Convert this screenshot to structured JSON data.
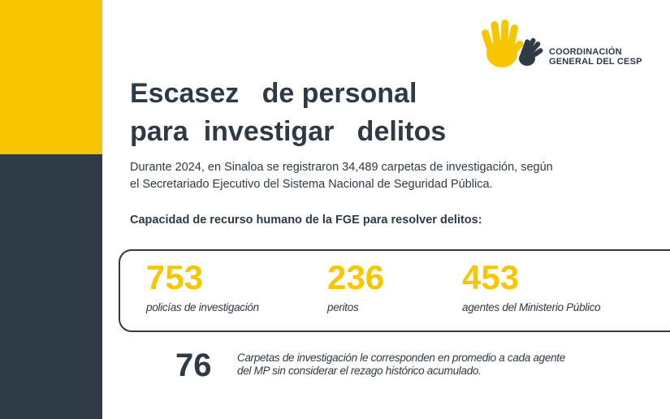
{
  "logo": {
    "line1": "COORDINACIÓN",
    "line2": "GENERAL DEL CESP",
    "icon": "raised-hands-icon",
    "colors": {
      "yellow": "#f7c600",
      "dark": "#2e3a46"
    }
  },
  "title": {
    "line1": "Escasez   de personal",
    "line2": "para  investigar   delitos"
  },
  "intro": {
    "line1": "Durante 2024, en Sinaloa se registraron 34,489 carpetas de investigación,  según",
    "line2": "el Secretariado Ejecutivo del Sistema Nacional de Seguridad Pública."
  },
  "subhead": "Capacidad de recurso humano de la FGE para resolver delitos:",
  "stats": [
    {
      "value": "753",
      "label": "policías de investigación"
    },
    {
      "value": "236",
      "label": "peritos"
    },
    {
      "value": "453",
      "label": "agentes del Ministerio Público"
    }
  ],
  "average": {
    "value": "76",
    "line1": "Carpetas de investigación le corresponden en promedio a cada agente",
    "line2": "del MP sin considerar el rezago histórico acumulado."
  },
  "colors": {
    "accent": "#f7c600",
    "dark": "#2e3a46",
    "background": "#ffffff"
  }
}
